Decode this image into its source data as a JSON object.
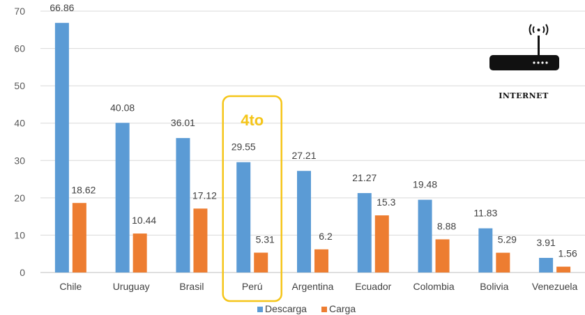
{
  "chart_data": {
    "type": "bar",
    "categories": [
      "Chile",
      "Uruguay",
      "Brasil",
      "Perú",
      "Argentina",
      "Ecuador",
      "Colombia",
      "Bolivia",
      "Venezuela"
    ],
    "series": [
      {
        "name": "Descarga",
        "color": "#5b9bd5",
        "values": [
          66.86,
          40.08,
          36.01,
          29.55,
          27.21,
          21.27,
          19.48,
          11.83,
          3.91
        ]
      },
      {
        "name": "Carga",
        "color": "#ed7d31",
        "values": [
          18.62,
          10.44,
          17.12,
          5.31,
          6.2,
          15.3,
          8.88,
          5.29,
          1.56
        ]
      }
    ],
    "ylim": [
      0,
      70
    ],
    "yticks": [
      0,
      10,
      20,
      30,
      40,
      50,
      60,
      70
    ],
    "grid": true,
    "legend": "bottom-center",
    "highlight": {
      "category": "Perú",
      "label": "4to",
      "color": "#f5c518"
    }
  },
  "icon": {
    "name": "wifi-router-icon",
    "label": "INTERNET"
  }
}
